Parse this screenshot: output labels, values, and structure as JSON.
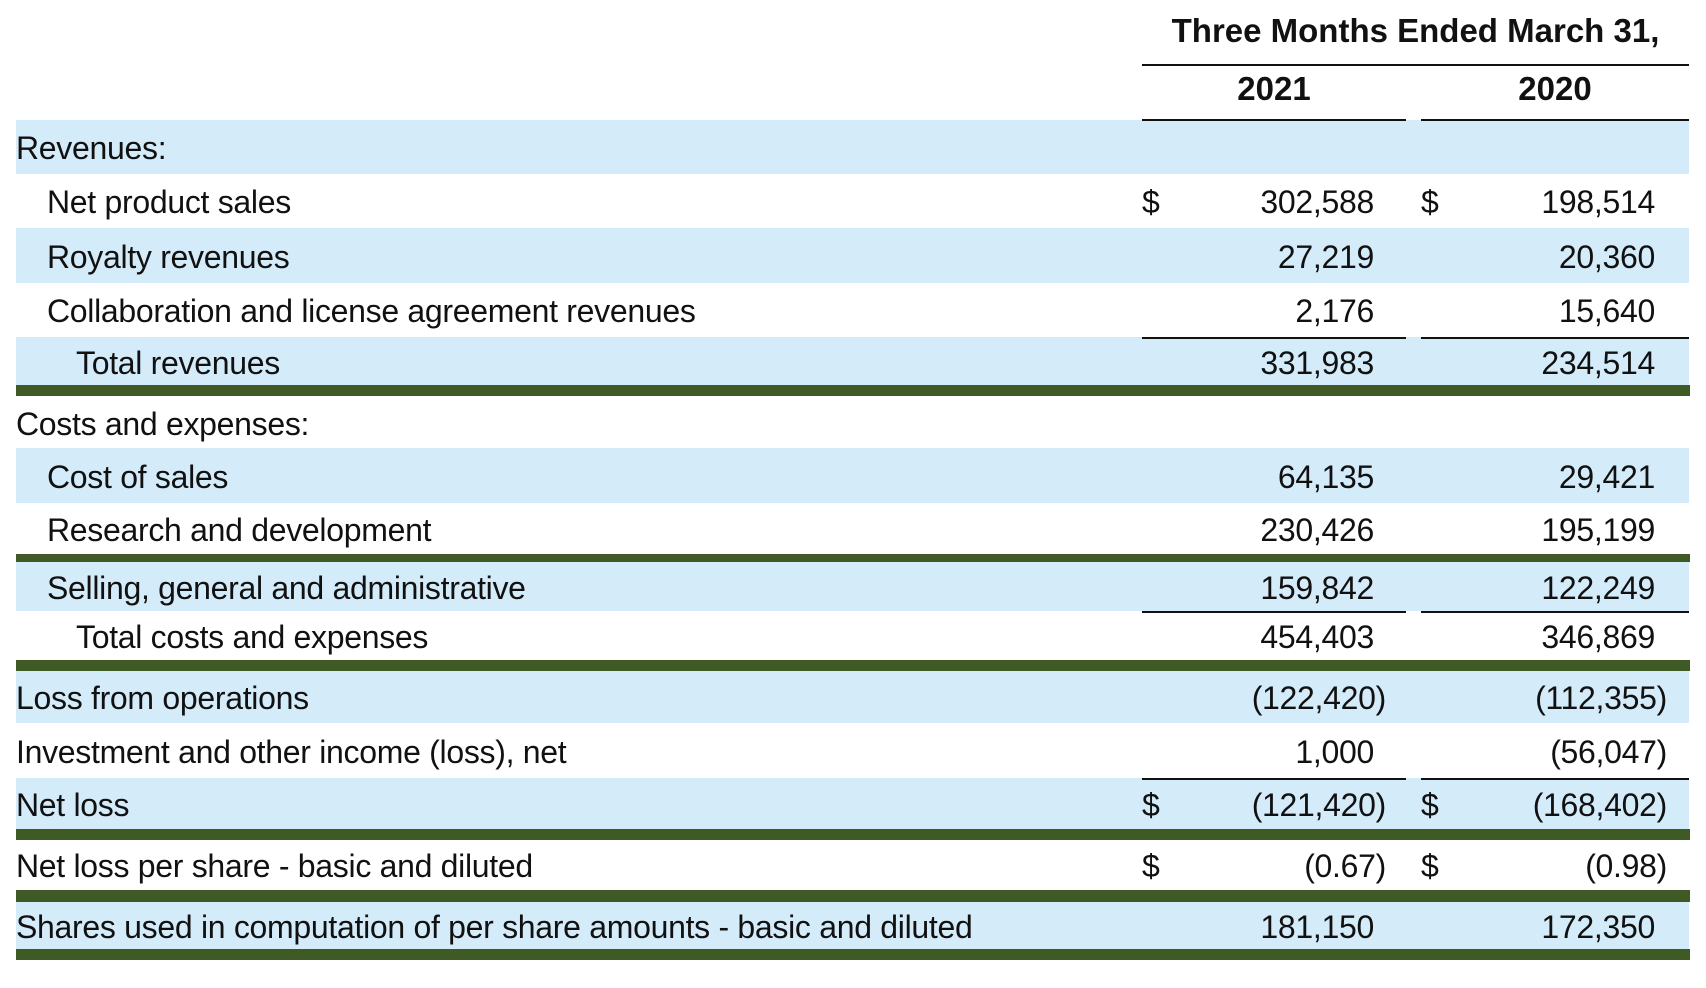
{
  "header": {
    "period": "Three Months Ended March 31,",
    "years": [
      "2021",
      "2020"
    ]
  },
  "rows": [
    {
      "label": "Revenues:",
      "v2021": "",
      "v2020": ""
    },
    {
      "label": "Net product sales",
      "c2021": "$",
      "v2021": "302,588",
      "c2020": "$",
      "v2020": "198,514"
    },
    {
      "label": "Royalty revenues",
      "v2021": "27,219",
      "v2020": "20,360"
    },
    {
      "label": "Collaboration and license agreement revenues",
      "v2021": "2,176",
      "v2020": "15,640"
    },
    {
      "label": "Total revenues",
      "v2021": "331,983",
      "v2020": "234,514"
    },
    {
      "label": "Costs and expenses:",
      "v2021": "",
      "v2020": ""
    },
    {
      "label": "Cost of sales",
      "v2021": "64,135",
      "v2020": "29,421"
    },
    {
      "label": "Research and development",
      "v2021": "230,426",
      "v2020": "195,199"
    },
    {
      "label": "Selling, general and administrative",
      "v2021": "159,842",
      "v2020": "122,249"
    },
    {
      "label": "Total costs and expenses",
      "v2021": "454,403",
      "v2020": "346,869"
    },
    {
      "label": "Loss from operations",
      "v2021": "(122,420)",
      "v2020": "(112,355)"
    },
    {
      "label": "Investment and other income (loss), net",
      "v2021": "1,000",
      "v2020": "(56,047)"
    },
    {
      "label": "Net loss",
      "c2021": "$",
      "v2021": "(121,420)",
      "c2020": "$",
      "v2020": "(168,402)"
    },
    {
      "label": "Net loss per share - basic and diluted",
      "c2021": "$",
      "v2021": "(0.67)",
      "c2020": "$",
      "v2020": "(0.98)"
    },
    {
      "label": "Shares used in computation of per share amounts - basic and diluted",
      "v2021": "181,150",
      "v2020": "172,350"
    }
  ],
  "colors": {
    "shade": "#d4ebf9",
    "highlight_rule": "#3f5a25"
  }
}
